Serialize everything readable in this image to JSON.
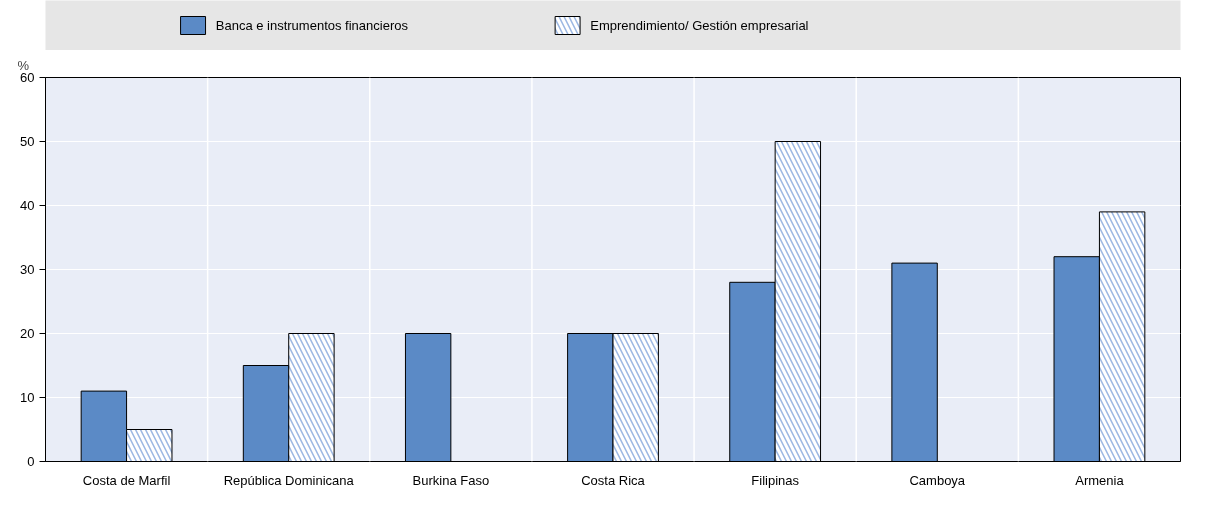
{
  "chart_data": {
    "type": "bar",
    "ylabel": "%",
    "categories": [
      "Costa de Marfil",
      "República Dominicana",
      "Burkina Faso",
      "Costa Rica",
      "Filipinas",
      "Camboya",
      "Armenia"
    ],
    "series": [
      {
        "name": "Banca e instrumentos financieros",
        "color": "#5b8ac6",
        "values": [
          11,
          15,
          20,
          20,
          28,
          31,
          32
        ]
      },
      {
        "name": "Emprendimiento/ Gestión empresarial",
        "color": "#9bb7e3",
        "values": [
          5,
          20,
          null,
          20,
          50,
          null,
          39
        ]
      }
    ],
    "ylim": [
      0,
      60
    ],
    "yticks": [
      0,
      10,
      20,
      30,
      40,
      50,
      60
    ],
    "grid": true,
    "legend": "top"
  }
}
